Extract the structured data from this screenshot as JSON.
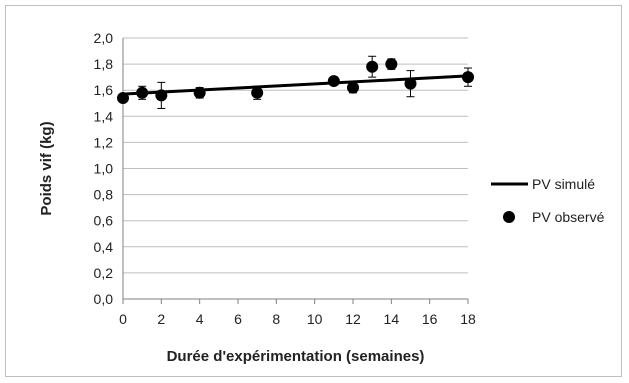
{
  "chart_data": {
    "type": "scatter",
    "title": "",
    "xlabel": "Durée d'expérimentation (semaines)",
    "ylabel": "Poids vif (kg)",
    "xlim": [
      0,
      18
    ],
    "ylim": [
      0,
      2
    ],
    "x_ticks": [
      "0",
      "2",
      "4",
      "6",
      "8",
      "10",
      "12",
      "14",
      "16",
      "18"
    ],
    "y_ticks": [
      "0,0",
      "0,2",
      "0,4",
      "0,6",
      "0,8",
      "1,0",
      "1,2",
      "1,4",
      "1,6",
      "1,8",
      "2,0"
    ],
    "grid": "horizontal",
    "legend_position": "right",
    "series": [
      {
        "name": "PV simulé",
        "kind": "line",
        "color": "#000000",
        "x": [
          0,
          18
        ],
        "y": [
          1.57,
          1.71
        ]
      },
      {
        "name": "PV observé",
        "kind": "points",
        "color": "#000000",
        "x": [
          0,
          1,
          2,
          4,
          7,
          11,
          12,
          13,
          14,
          15,
          18
        ],
        "y": [
          1.54,
          1.58,
          1.56,
          1.58,
          1.58,
          1.67,
          1.62,
          1.78,
          1.8,
          1.65,
          1.7
        ],
        "err": [
          0.02,
          0.05,
          0.1,
          0.04,
          0.05,
          0.02,
          0.04,
          0.08,
          0.04,
          0.1,
          0.07
        ]
      }
    ]
  }
}
